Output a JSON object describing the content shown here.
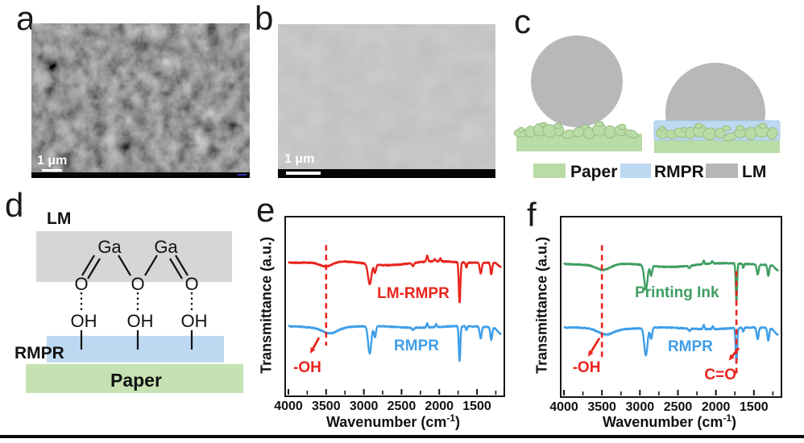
{
  "panel_a": {
    "label": "a",
    "scale_label": "1 μm"
  },
  "panel_b": {
    "label": "b",
    "scale_label": "1 μm"
  },
  "panel_c": {
    "label": "c",
    "legend": [
      {
        "label": "Paper",
        "color": "#b9dba5"
      },
      {
        "label": "RMPR",
        "color": "#bdd9f2"
      },
      {
        "label": "LM",
        "color": "#b6b6b6"
      }
    ]
  },
  "panel_d": {
    "label": "d",
    "lm_label": "LM",
    "ga_label": "Ga",
    "o_label": "O",
    "oh_label": "OH",
    "rmpr_label": "RMPR",
    "paper_label": "Paper"
  },
  "chart_data": [
    {
      "id": "e",
      "panel_label": "e",
      "type": "line",
      "xlabel_prefix": "Wavenumber (cm",
      "xlabel_sup": "-1",
      "xlabel_suffix": ")",
      "ylabel": "Transmittance (a.u.)",
      "x_ticks": [
        4000,
        3500,
        3000,
        2500,
        2000,
        1500
      ],
      "x_minor_step": 250,
      "x_range": [
        4000,
        1180
      ],
      "y_note": "transmittance, arbitrary units, curves vertically offset",
      "legend_position": "in-plot labels",
      "grid": false,
      "series": [
        {
          "name": "LM-RMPR",
          "color": "#e8251d",
          "baseline_frac": 0.25,
          "label_x": 0.585,
          "label_y": 0.43,
          "features": [
            [
              3500,
              120,
              6
            ],
            [
              2700,
              400,
              3
            ],
            [
              2922,
              32,
              25
            ],
            [
              2852,
              18,
              10
            ],
            [
              2349,
              18,
              4
            ],
            [
              2160,
              16,
              -7
            ],
            [
              2060,
              14,
              -3
            ],
            [
              1985,
              14,
              -4
            ],
            [
              1730,
              15,
              50
            ],
            [
              1640,
              14,
              6
            ],
            [
              1450,
              18,
              13
            ],
            [
              1310,
              16,
              15
            ],
            [
              1180,
              60,
              6
            ]
          ]
        },
        {
          "name": "RMPR",
          "color": "#3f9ee8",
          "baseline_frac": 0.615,
          "label_x": 0.6,
          "label_y": 0.725,
          "features": [
            [
              3450,
              140,
              7
            ],
            [
              2922,
              30,
              34
            ],
            [
              2852,
              18,
              14
            ],
            [
              2349,
              18,
              3
            ],
            [
              2160,
              14,
              -5
            ],
            [
              2040,
              14,
              -4
            ],
            [
              1730,
              14,
              44
            ],
            [
              1640,
              12,
              5
            ],
            [
              1450,
              18,
              14
            ],
            [
              1310,
              16,
              16
            ],
            [
              1180,
              60,
              8
            ]
          ]
        }
      ],
      "annotations": [
        {
          "text": "-OH",
          "wavenumber": 3500,
          "color": "#e8251d",
          "line_y1": 0.155,
          "line_y2": 0.72,
          "arrow": [
            0.152,
            0.675,
            0.111,
            0.765
          ],
          "text_x": 0.098,
          "text_y": 0.845
        }
      ]
    },
    {
      "id": "f",
      "panel_label": "f",
      "type": "line",
      "xlabel_prefix": "Wavenumber (cm",
      "xlabel_sup": "-1",
      "xlabel_suffix": ")",
      "ylabel": "Transmittance (a.u.)",
      "x_ticks": [
        4000,
        3500,
        3000,
        2500,
        2000,
        1500
      ],
      "x_minor_step": 250,
      "x_range": [
        4000,
        1180
      ],
      "y_note": "transmittance, arbitrary units, curves vertically offset",
      "legend_position": "in-plot labels",
      "grid": false,
      "series": [
        {
          "name": "Printing Ink",
          "color": "#3f9e62",
          "baseline_frac": 0.26,
          "label_x": 0.527,
          "label_y": 0.423,
          "features": [
            [
              3480,
              130,
              7
            ],
            [
              2700,
              400,
              3
            ],
            [
              2922,
              30,
              30
            ],
            [
              2852,
              18,
              12
            ],
            [
              2349,
              18,
              3
            ],
            [
              2160,
              14,
              -4
            ],
            [
              2050,
              14,
              -3
            ],
            [
              1730,
              13,
              47
            ],
            [
              1640,
              12,
              5
            ],
            [
              1450,
              18,
              12
            ],
            [
              1310,
              16,
              14
            ],
            [
              1180,
              60,
              7
            ]
          ]
        },
        {
          "name": "RMPR",
          "color": "#3f9ee8",
          "baseline_frac": 0.62,
          "label_x": 0.588,
          "label_y": 0.725,
          "features": [
            [
              3450,
              140,
              7
            ],
            [
              2922,
              30,
              34
            ],
            [
              2852,
              18,
              14
            ],
            [
              2349,
              18,
              3
            ],
            [
              2160,
              14,
              -5
            ],
            [
              2040,
              14,
              -4
            ],
            [
              1730,
              14,
              44
            ],
            [
              1640,
              12,
              5
            ],
            [
              1450,
              18,
              14
            ],
            [
              1310,
              16,
              16
            ],
            [
              1180,
              60,
              8
            ]
          ]
        }
      ],
      "annotations": [
        {
          "text": "-OH",
          "wavenumber": 3500,
          "color": "#e8251d",
          "line_y1": 0.155,
          "line_y2": 0.8,
          "arrow": [
            0.173,
            0.675,
            0.121,
            0.779
          ],
          "text_x": 0.114,
          "text_y": 0.842
        },
        {
          "text": "C=O",
          "wavenumber": 1730,
          "color": "#e8251d",
          "line_y1": 0.3,
          "line_y2": 0.875,
          "arrow": [
            0.809,
            0.73,
            0.763,
            0.8
          ],
          "text_x": 0.725,
          "text_y": 0.885
        }
      ]
    }
  ]
}
